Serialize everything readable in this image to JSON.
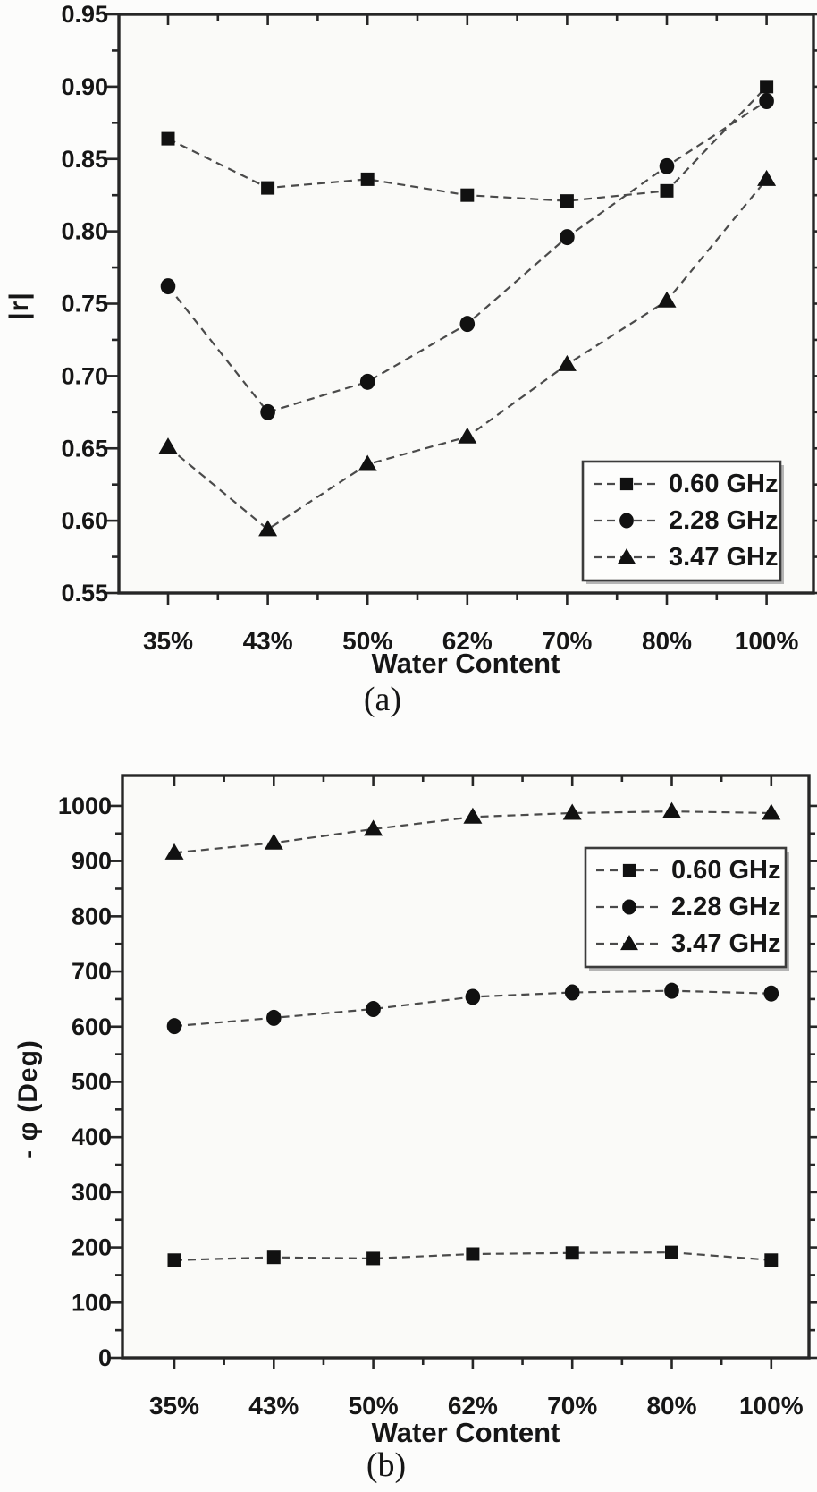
{
  "colors": {
    "ink": "#161616",
    "spine": "#262626",
    "series_line": "#4a4a4a",
    "marker_fill": "#111111",
    "legend_border": "#3c3c3c",
    "legend_bg": "#fdfdfc",
    "legend_shadow": "#b5b5b5",
    "plot_bg": "#fafaf8",
    "page_bg": "#fcfcfb"
  },
  "chart_data": [
    {
      "panel": "a",
      "type": "line",
      "panel_label": "(a)",
      "xlabel": "Water Content",
      "ylabel": "|r|",
      "categories": [
        "35%",
        "43%",
        "50%",
        "62%",
        "70%",
        "80%",
        "100%"
      ],
      "ylim": [
        0.55,
        0.95
      ],
      "yticks": [
        0.55,
        0.6,
        0.65,
        0.7,
        0.75,
        0.8,
        0.85,
        0.9,
        0.95
      ],
      "ytick_labels": [
        "0.55",
        "0.60",
        "0.65",
        "0.70",
        "0.75",
        "0.80",
        "0.85",
        "0.90",
        "0.95"
      ],
      "grid": "off",
      "legend_position": "bottom-right",
      "series": [
        {
          "name": "0.60 GHz",
          "marker": "square",
          "values": [
            0.864,
            0.83,
            0.836,
            0.825,
            0.821,
            0.828,
            0.9
          ]
        },
        {
          "name": "2.28 GHz",
          "marker": "circle",
          "values": [
            0.762,
            0.675,
            0.696,
            0.736,
            0.796,
            0.845,
            0.89
          ]
        },
        {
          "name": "3.47 GHz",
          "marker": "triangle",
          "values": [
            0.651,
            0.594,
            0.639,
            0.658,
            0.708,
            0.752,
            0.836
          ]
        }
      ]
    },
    {
      "panel": "b",
      "type": "line",
      "panel_label": "(b)",
      "xlabel": "Water Content",
      "ylabel": "- φ (Deg)",
      "categories": [
        "35%",
        "43%",
        "50%",
        "62%",
        "70%",
        "80%",
        "100%"
      ],
      "ylim": [
        0,
        1055
      ],
      "yticks": [
        0,
        100,
        200,
        300,
        400,
        500,
        600,
        700,
        800,
        900,
        1000
      ],
      "ytick_labels": [
        "0",
        "100",
        "200",
        "300",
        "400",
        "500",
        "600",
        "700",
        "800",
        "900",
        "1000"
      ],
      "grid": "off",
      "legend_position": "top-right",
      "series": [
        {
          "name": "0.60 GHz",
          "marker": "square",
          "values": [
            177,
            182,
            180,
            188,
            190,
            191,
            177
          ]
        },
        {
          "name": "2.28 GHz",
          "marker": "circle",
          "values": [
            601,
            616,
            632,
            654,
            662,
            665,
            660
          ]
        },
        {
          "name": "3.47 GHz",
          "marker": "triangle",
          "values": [
            915,
            933,
            958,
            980,
            987,
            990,
            987
          ]
        }
      ]
    }
  ]
}
